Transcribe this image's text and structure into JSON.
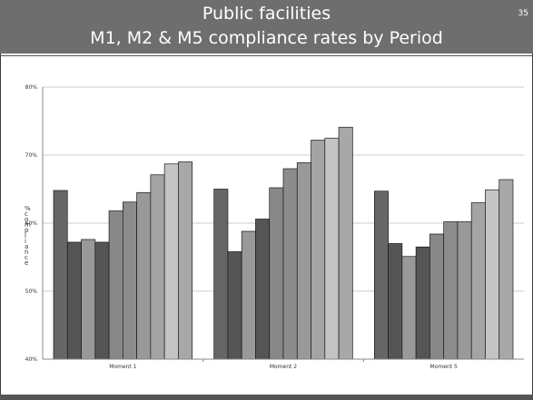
{
  "slide": {
    "title_line1": "Public facilities",
    "title_line2": "M1, M2 & M5 compliance rates by Period",
    "slide_number": "35"
  },
  "chart_data": {
    "type": "bar",
    "ylabel": "% compliance",
    "ylim": [
      40,
      80
    ],
    "yticks": [
      "40%",
      "50%",
      "60%",
      "70%",
      "80%"
    ],
    "grid": true,
    "categories": [
      "Moment 1",
      "Moment 2",
      "Moment 5"
    ],
    "series_colors": [
      "#666666",
      "#555555",
      "#999999",
      "#555555",
      "#888888",
      "#8c8c8c",
      "#999999",
      "#a4a4a4",
      "#c4c4c4",
      "#a8a8a8"
    ],
    "series": [
      {
        "values": [
          64.8,
          65.0,
          64.7
        ]
      },
      {
        "values": [
          57.2,
          55.8,
          57.0
        ]
      },
      {
        "values": [
          57.6,
          58.8,
          55.1
        ]
      },
      {
        "values": [
          57.2,
          60.6,
          56.5
        ]
      },
      {
        "values": [
          61.8,
          65.2,
          58.4
        ]
      },
      {
        "values": [
          63.1,
          68.0,
          60.2
        ]
      },
      {
        "values": [
          64.5,
          68.9,
          60.2
        ]
      },
      {
        "values": [
          67.1,
          72.2,
          63.0
        ]
      },
      {
        "values": [
          68.7,
          72.5,
          64.9
        ]
      },
      {
        "values": [
          69.0,
          74.1,
          66.4
        ]
      }
    ]
  }
}
